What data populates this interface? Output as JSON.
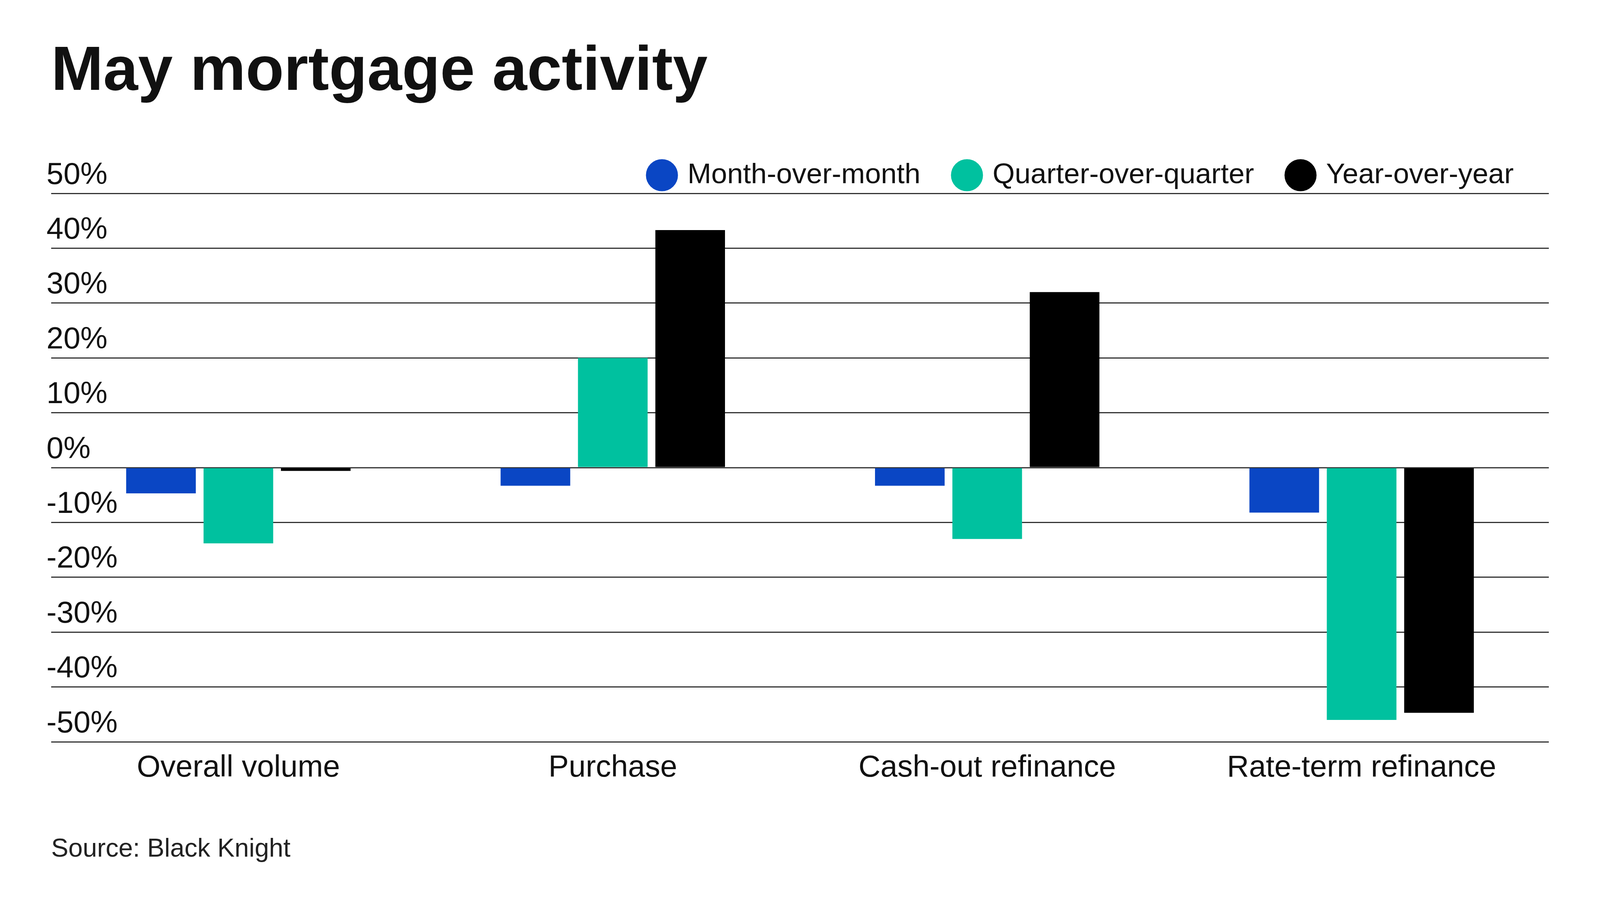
{
  "chart_data": {
    "type": "bar",
    "title": "May mortgage activity",
    "source": "Source: Black Knight",
    "categories": [
      "Overall volume",
      "Purchase",
      "Cash-out refinance",
      "Rate-term refinance"
    ],
    "series": [
      {
        "name": "Month-over-month",
        "color": "#0a46c4",
        "values": [
          -4.7,
          -3.3,
          -3.3,
          -8.2
        ]
      },
      {
        "name": "Quarter-over-quarter",
        "color": "#00c19f",
        "values": [
          -13.8,
          20,
          -13,
          -46
        ]
      },
      {
        "name": "Year-over-year",
        "color": "#000000",
        "values": [
          -0.6,
          43.3,
          32,
          -44.7
        ]
      }
    ],
    "ylim": [
      -50,
      50
    ],
    "yticks": [
      {
        "value": -50,
        "label": "-50%"
      },
      {
        "value": -40,
        "label": "-40%"
      },
      {
        "value": -30,
        "label": "-30%"
      },
      {
        "value": -20,
        "label": "-20%"
      },
      {
        "value": -10,
        "label": "-10%"
      },
      {
        "value": 0,
        "label": "0%"
      },
      {
        "value": 10,
        "label": "10%"
      },
      {
        "value": 20,
        "label": "20%"
      },
      {
        "value": 30,
        "label": "30%"
      },
      {
        "value": 40,
        "label": "40%"
      },
      {
        "value": 50,
        "label": "50%"
      }
    ],
    "grid": true,
    "legend": "top-right"
  }
}
